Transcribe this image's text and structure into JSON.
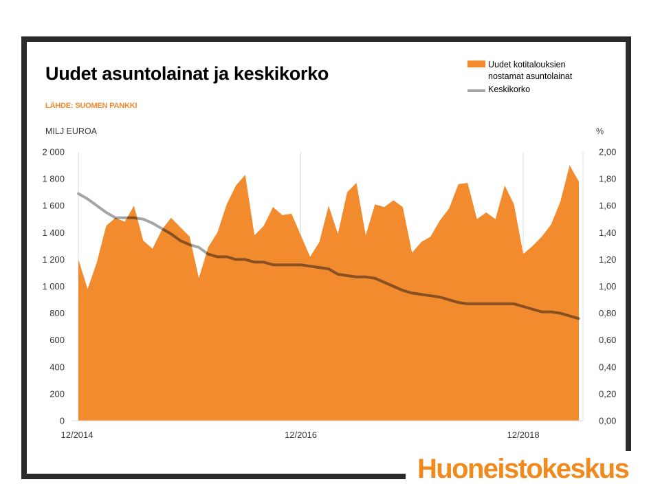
{
  "chart_data": {
    "type": "area",
    "title": "Uudet asuntolainat ja keskikorko",
    "source": "LÄHDE: SUOMEN PANKKI",
    "left_axis_unit": "MILJ EUROA",
    "right_axis_unit": "%",
    "x_tick_labels": [
      "12/2014",
      "12/2016",
      "12/2018"
    ],
    "left_ticks": [
      "0",
      "200",
      "400",
      "600",
      "800",
      "1 000",
      "1 200",
      "1 400",
      "1 600",
      "1 800",
      "2 000"
    ],
    "right_ticks": [
      "0,00",
      "0,20",
      "0,40",
      "0,60",
      "0,80",
      "1,00",
      "1,20",
      "1,40",
      "1,60",
      "1,80",
      "2,00"
    ],
    "left_range": [
      0,
      2000
    ],
    "right_range": [
      0,
      2.0
    ],
    "x_start": "12/2014",
    "grid": "vertical at ticks",
    "legend_position": "top-right",
    "series": [
      {
        "name": "Uudet kotitalouksien nostamat asuntolainat",
        "type": "area",
        "axis": "left",
        "color": "#f28a2e",
        "values": [
          1200,
          980,
          1180,
          1450,
          1510,
          1480,
          1600,
          1340,
          1280,
          1420,
          1510,
          1440,
          1370,
          1060,
          1290,
          1400,
          1610,
          1750,
          1830,
          1380,
          1450,
          1590,
          1530,
          1540,
          1380,
          1220,
          1330,
          1600,
          1390,
          1700,
          1770,
          1380,
          1610,
          1590,
          1640,
          1590,
          1250,
          1330,
          1370,
          1490,
          1580,
          1760,
          1770,
          1500,
          1550,
          1500,
          1750,
          1610,
          1240,
          1300,
          1370,
          1460,
          1630,
          1900,
          1780
        ]
      },
      {
        "name": "Keskikorko",
        "type": "line",
        "axis": "right",
        "color": "#a5a5a5",
        "values": [
          1.69,
          1.65,
          1.6,
          1.55,
          1.51,
          1.51,
          1.51,
          1.5,
          1.47,
          1.43,
          1.39,
          1.34,
          1.31,
          1.29,
          1.24,
          1.22,
          1.22,
          1.2,
          1.2,
          1.18,
          1.18,
          1.16,
          1.16,
          1.16,
          1.16,
          1.15,
          1.14,
          1.13,
          1.09,
          1.08,
          1.07,
          1.07,
          1.06,
          1.03,
          1.0,
          0.97,
          0.95,
          0.94,
          0.93,
          0.92,
          0.9,
          0.88,
          0.87,
          0.87,
          0.87,
          0.87,
          0.87,
          0.87,
          0.85,
          0.83,
          0.81,
          0.81,
          0.8,
          0.78,
          0.76
        ]
      }
    ]
  },
  "legend": {
    "area_label_line1": "Uudet kotitalouksien",
    "area_label_line2": "nostamat asuntolainat",
    "line_label": "Keskikorko"
  },
  "brand": "Huoneistokeskus"
}
